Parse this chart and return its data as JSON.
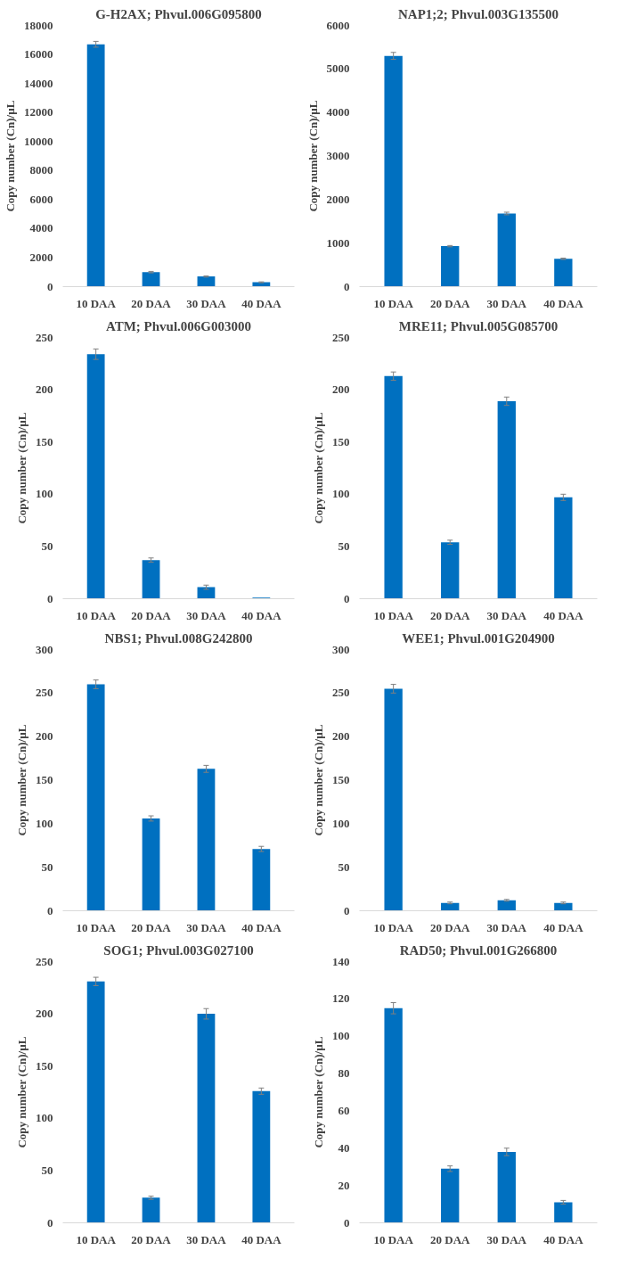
{
  "chart_data": [
    {
      "type": "bar",
      "title": "G-H2AX; Phvul.006G095800",
      "ylabel": "Copy number (Cn)/µL",
      "categories": [
        "10 DAA",
        "20 DAA",
        "30 DAA",
        "40 DAA"
      ],
      "values": [
        16700,
        1000,
        700,
        300
      ],
      "errors": [
        200,
        50,
        40,
        30
      ],
      "color": "#0070c0",
      "ylim": [
        0,
        18000
      ],
      "yticks": [
        0,
        2000,
        4000,
        6000,
        8000,
        10000,
        12000,
        14000,
        16000,
        18000
      ],
      "grid": false
    },
    {
      "type": "bar",
      "title": "NAP1;2; Phvul.003G135500",
      "ylabel": "Copy number (Cn)/µL",
      "categories": [
        "10 DAA",
        "20 DAA",
        "30 DAA",
        "40 DAA"
      ],
      "values": [
        5300,
        930,
        1680,
        640
      ],
      "errors": [
        80,
        15,
        30,
        15
      ],
      "color": "#0070c0",
      "ylim": [
        0,
        6000
      ],
      "yticks": [
        0,
        1000,
        2000,
        3000,
        4000,
        5000,
        6000
      ],
      "grid": false
    },
    {
      "type": "bar",
      "title": "ATM; Phvul.006G003000",
      "ylabel": "Copy number (Cn)/µL",
      "categories": [
        "10 DAA",
        "20 DAA",
        "30 DAA",
        "40 DAA"
      ],
      "values": [
        234,
        37,
        11,
        1
      ],
      "errors": [
        5,
        2,
        2,
        null
      ],
      "color": "#0070c0",
      "ylim": [
        0,
        250
      ],
      "yticks": [
        0,
        50,
        100,
        150,
        200,
        250
      ],
      "grid": false
    },
    {
      "type": "bar",
      "title": "MRE11; Phvul.005G085700",
      "ylabel": "Copy number (Cn)/µL",
      "categories": [
        "10 DAA",
        "20 DAA",
        "30 DAA",
        "40 DAA"
      ],
      "values": [
        213,
        54,
        189,
        97
      ],
      "errors": [
        4,
        2,
        4,
        3
      ],
      "color": "#0070c0",
      "ylim": [
        0,
        250
      ],
      "yticks": [
        0,
        50,
        100,
        150,
        200,
        250
      ],
      "grid": false
    },
    {
      "type": "bar",
      "title": "NBS1; Phvul.008G242800",
      "ylabel": "Copy number (Cn)/µL",
      "categories": [
        "10 DAA",
        "20 DAA",
        "30 DAA",
        "40 DAA"
      ],
      "values": [
        260,
        106,
        163,
        71
      ],
      "errors": [
        5,
        3,
        4,
        3
      ],
      "color": "#0070c0",
      "ylim": [
        0,
        300
      ],
      "yticks": [
        0,
        50,
        100,
        150,
        200,
        250,
        300
      ],
      "grid": false
    },
    {
      "type": "bar",
      "title": "WEE1; Phvul.001G204900",
      "ylabel": "Copy number (Cn)/µL",
      "categories": [
        "10 DAA",
        "20 DAA",
        "30 DAA",
        "40 DAA"
      ],
      "values": [
        255,
        9,
        12,
        9
      ],
      "errors": [
        5,
        1,
        1,
        1
      ],
      "color": "#0070c0",
      "ylim": [
        0,
        300
      ],
      "yticks": [
        0,
        50,
        100,
        150,
        200,
        250,
        300
      ],
      "grid": false
    },
    {
      "type": "bar",
      "title": "SOG1; Phvul.003G027100",
      "ylabel": "Copy number (Cn)/µL",
      "categories": [
        "10 DAA",
        "20 DAA",
        "30 DAA",
        "40 DAA"
      ],
      "values": [
        231,
        24,
        200,
        126
      ],
      "errors": [
        4,
        1.5,
        5,
        3
      ],
      "color": "#0070c0",
      "ylim": [
        0,
        250
      ],
      "yticks": [
        0,
        50,
        100,
        150,
        200,
        250
      ],
      "grid": false
    },
    {
      "type": "bar",
      "title": "RAD50; Phvul.001G266800",
      "ylabel": "Copy number (Cn)/µL",
      "categories": [
        "10 DAA",
        "20 DAA",
        "30 DAA",
        "40 DAA"
      ],
      "values": [
        115,
        29,
        38,
        11
      ],
      "errors": [
        3,
        1.5,
        2,
        1
      ],
      "color": "#0070c0",
      "ylim": [
        0,
        140
      ],
      "yticks": [
        0,
        20,
        40,
        60,
        80,
        100,
        120,
        140
      ],
      "grid": false
    }
  ]
}
